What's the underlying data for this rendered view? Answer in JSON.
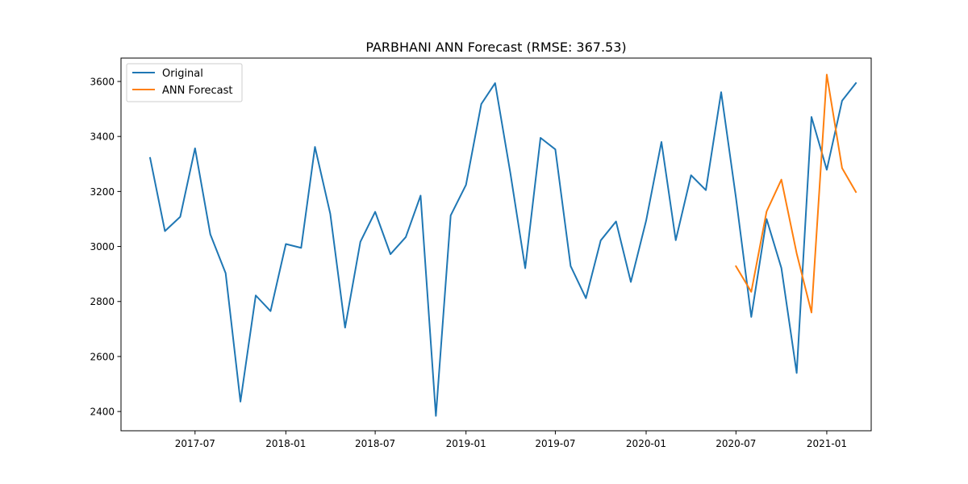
{
  "chart_data": {
    "type": "line",
    "title": "PARBHANI ANN Forecast (RMSE: 367.53)",
    "xlabel": "",
    "ylabel": "",
    "x_range": [
      "2017-02-01",
      "2021-04-01"
    ],
    "ylim": [
      2330,
      3685
    ],
    "grid": false,
    "legend_position": "top-left",
    "x_ticks": [
      {
        "value": "2017-07-01",
        "label": "2017-07"
      },
      {
        "value": "2018-01-01",
        "label": "2018-01"
      },
      {
        "value": "2018-07-01",
        "label": "2018-07"
      },
      {
        "value": "2019-01-01",
        "label": "2019-01"
      },
      {
        "value": "2019-07-01",
        "label": "2019-07"
      },
      {
        "value": "2020-01-01",
        "label": "2020-01"
      },
      {
        "value": "2020-07-01",
        "label": "2020-07"
      },
      {
        "value": "2021-01-01",
        "label": "2021-01"
      }
    ],
    "y_ticks": [
      2400,
      2600,
      2800,
      3000,
      3200,
      3400,
      3600
    ],
    "series": [
      {
        "name": "Original",
        "color": "#1f77b4",
        "x": [
          "2017-04-01",
          "2017-05-01",
          "2017-06-01",
          "2017-07-01",
          "2017-08-01",
          "2017-09-01",
          "2017-10-01",
          "2017-11-01",
          "2017-12-01",
          "2018-01-01",
          "2018-02-01",
          "2018-03-01",
          "2018-04-01",
          "2018-05-01",
          "2018-06-01",
          "2018-07-01",
          "2018-08-01",
          "2018-09-01",
          "2018-10-01",
          "2018-11-01",
          "2018-12-01",
          "2019-01-01",
          "2019-02-01",
          "2019-03-01",
          "2019-04-01",
          "2019-05-01",
          "2019-06-01",
          "2019-07-01",
          "2019-08-01",
          "2019-09-01",
          "2019-10-01",
          "2019-11-01",
          "2019-12-01",
          "2020-01-01",
          "2020-02-01",
          "2020-03-01",
          "2020-04-01",
          "2020-05-01",
          "2020-06-01",
          "2020-07-01",
          "2020-08-01",
          "2020-09-01",
          "2020-10-01",
          "2020-11-01",
          "2020-12-01",
          "2021-01-01",
          "2021-02-01",
          "2021-03-01"
        ],
        "values": [
          3322,
          3056,
          3108,
          3357,
          3044,
          2903,
          2436,
          2822,
          2765,
          3009,
          2995,
          3362,
          3119,
          2705,
          3017,
          3126,
          2972,
          3034,
          3185,
          2384,
          3113,
          3224,
          3518,
          3594,
          3266,
          2921,
          3395,
          3353,
          2929,
          2812,
          3022,
          3091,
          2871,
          3094,
          3380,
          3023,
          3259,
          3205,
          3561,
          3177,
          2744,
          3100,
          2922,
          2540,
          3471,
          3279,
          3530,
          3594
        ]
      },
      {
        "name": "ANN Forecast",
        "color": "#ff7f0e",
        "x": [
          "2020-07-01",
          "2020-08-01",
          "2020-09-01",
          "2020-10-01",
          "2020-11-01",
          "2020-12-01",
          "2021-01-01",
          "2021-02-01",
          "2021-03-01"
        ],
        "values": [
          2928,
          2835,
          3127,
          3243,
          2975,
          2760,
          3625,
          3285,
          3198
        ]
      }
    ]
  }
}
